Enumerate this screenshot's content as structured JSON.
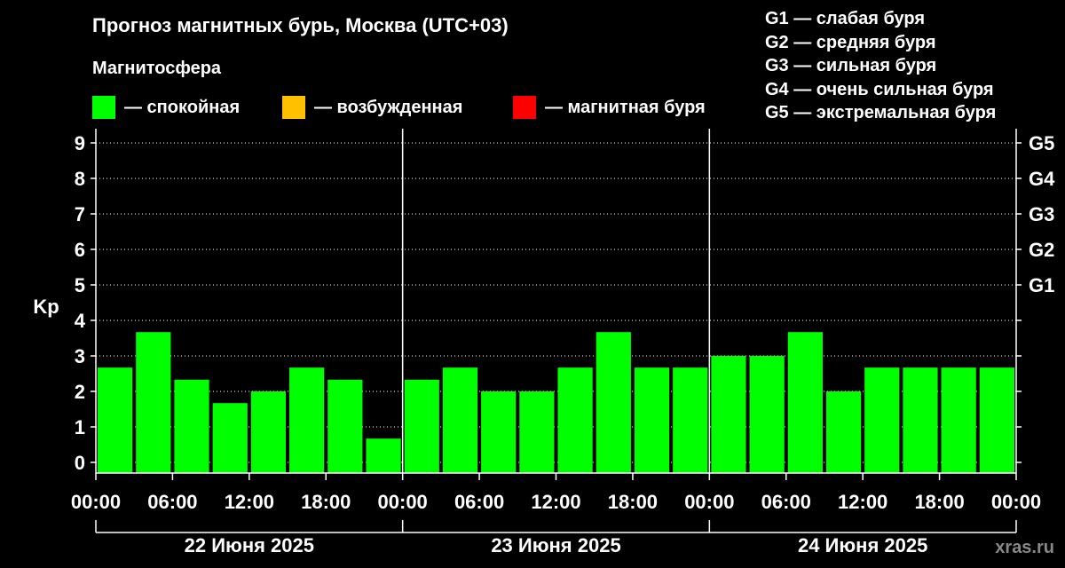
{
  "title": "Прогноз магнитных бурь, Москва (UTC+03)",
  "subtitle": "Магнитосфера",
  "legend": [
    {
      "label": "— спокойная",
      "color": "#00ff00"
    },
    {
      "label": "— возбужденная",
      "color": "#ffc000"
    },
    {
      "label": "— магнитная буря",
      "color": "#ff0000"
    }
  ],
  "g_legend": [
    "G1 — слабая буря",
    "G2 — средняя буря",
    "G3 — сильная буря",
    "G4 — очень сильная буря",
    "G5 — экстремальная буря"
  ],
  "watermark": "xras.ru",
  "chart_data": {
    "type": "bar",
    "ylabel": "Kp",
    "ylim": [
      -0.3,
      9.4
    ],
    "yticks": [
      "0",
      "1",
      "2",
      "3",
      "4",
      "5",
      "6",
      "7",
      "8",
      "9"
    ],
    "right_ticks": [
      {
        "value": 5,
        "label": "G1"
      },
      {
        "value": 6,
        "label": "G2"
      },
      {
        "value": 7,
        "label": "G3"
      },
      {
        "value": 8,
        "label": "G4"
      },
      {
        "value": 9,
        "label": "G5"
      }
    ],
    "x_tick_labels": [
      "00:00",
      "06:00",
      "12:00",
      "18:00",
      "00:00",
      "06:00",
      "12:00",
      "18:00",
      "00:00",
      "06:00",
      "12:00",
      "18:00",
      "00:00"
    ],
    "days": [
      "22 Июня 2025",
      "23 Июня 2025",
      "24 Июня 2025"
    ],
    "bar_color": "#00ff00",
    "values": [
      2.67,
      3.67,
      2.33,
      1.67,
      2.0,
      2.67,
      2.33,
      0.67,
      2.33,
      2.67,
      2.0,
      2.0,
      2.67,
      3.67,
      2.67,
      2.67,
      3.0,
      3.0,
      3.67,
      2.0,
      2.67,
      2.67,
      2.67,
      2.67
    ],
    "grid": true
  }
}
